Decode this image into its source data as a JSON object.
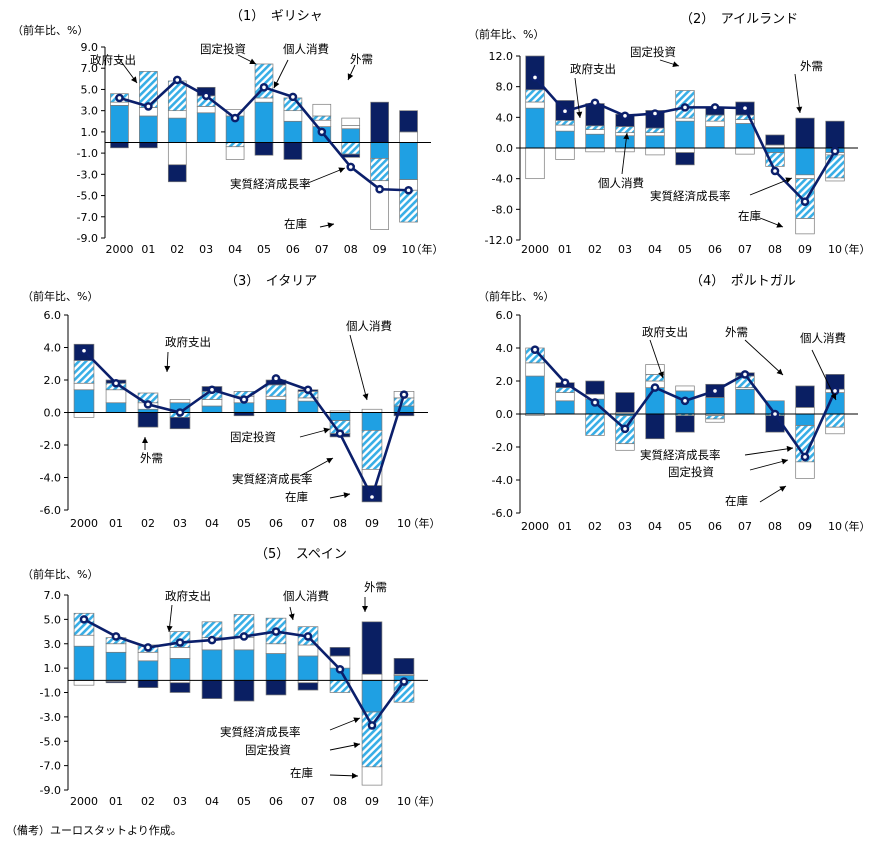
{
  "note": "（備考）ユーロスタットより作成。",
  "colors": {
    "consumption": "#1fa0e3",
    "government": "#ffffff",
    "investment": "#37aee6",
    "inventory": "#ffffff",
    "external": "#0a1f63",
    "growth_line": "#0b1f6b",
    "outline": "#7a7a7a"
  },
  "chart_data": [
    {
      "type": "bar",
      "title": "（1）　ギリシャ",
      "ylabel": "（前年比、%）",
      "year_unit": "（年）",
      "categories": [
        "2000",
        "01",
        "02",
        "03",
        "04",
        "05",
        "06",
        "07",
        "08",
        "09",
        "10"
      ],
      "ylim": [
        -9,
        9
      ],
      "yticks": [
        "9.0",
        "7.0",
        "5.0",
        "3.0",
        "1.0",
        "-1.0",
        "-3.0",
        "-5.0",
        "-7.0",
        "-9.0"
      ],
      "series": [
        {
          "name": "個人消費",
          "values": [
            3.5,
            2.5,
            2.3,
            2.8,
            2.5,
            3.8,
            2.0,
            1.5,
            1.3,
            -1.5,
            -3.5
          ]
        },
        {
          "name": "政府支出",
          "values": [
            0.3,
            0.8,
            0.7,
            0.6,
            0.6,
            0.4,
            1.0,
            0.6,
            0.3,
            0.0,
            -1.0
          ]
        },
        {
          "name": "固定投資",
          "values": [
            0.8,
            3.4,
            2.8,
            1.0,
            -0.4,
            3.2,
            1.2,
            0.4,
            -1.1,
            -2.1,
            -3.0
          ]
        },
        {
          "name": "在庫",
          "values": [
            0.0,
            0.0,
            -2.1,
            0.0,
            -1.2,
            0.0,
            0.0,
            1.1,
            0.7,
            -4.6,
            1.0
          ]
        },
        {
          "name": "外需",
          "values": [
            -0.5,
            -0.5,
            -1.6,
            0.8,
            0.0,
            -1.2,
            -1.6,
            0.0,
            -0.3,
            3.8,
            2.0
          ]
        }
      ],
      "growth": {
        "name": "実質経済成長率",
        "values": [
          4.2,
          3.4,
          5.9,
          4.4,
          2.3,
          5.2,
          4.3,
          1.0,
          -2.3,
          -4.4,
          -4.5
        ]
      },
      "annotations": [
        "政府支出",
        "固定投資",
        "個人消費",
        "外需",
        "実質経済成長率",
        "在庫"
      ]
    },
    {
      "type": "bar",
      "title": "（2）　アイルランド",
      "ylabel": "（前年比、%）",
      "year_unit": "（年）",
      "categories": [
        "2000",
        "01",
        "02",
        "03",
        "04",
        "05",
        "06",
        "07",
        "08",
        "09",
        "10"
      ],
      "ylim": [
        -12,
        12
      ],
      "yticks": [
        "12.0",
        "8.0",
        "4.0",
        "0.0",
        "-4.0",
        "-8.0",
        "-12.0"
      ],
      "series": [
        {
          "name": "個人消費",
          "values": [
            5.2,
            2.2,
            1.8,
            1.6,
            1.6,
            3.5,
            2.8,
            3.2,
            -0.6,
            -3.5,
            -0.6
          ]
        },
        {
          "name": "政府支出",
          "values": [
            0.8,
            0.8,
            0.6,
            0.4,
            0.4,
            0.4,
            0.7,
            0.5,
            0.4,
            -0.5,
            -0.3
          ]
        },
        {
          "name": "固定投資",
          "values": [
            1.6,
            0.6,
            0.5,
            0.8,
            0.6,
            3.6,
            0.8,
            0.6,
            -1.8,
            -5.2,
            -3.0
          ]
        },
        {
          "name": "在庫",
          "values": [
            -4.0,
            -1.5,
            -0.5,
            -0.5,
            -0.9,
            -0.6,
            0.0,
            -0.8,
            0.0,
            -2.0,
            -0.4
          ]
        },
        {
          "name": "外需",
          "values": [
            4.4,
            2.6,
            2.9,
            1.6,
            2.3,
            -1.6,
            1.0,
            1.7,
            1.3,
            3.9,
            3.5
          ]
        }
      ],
      "growth": {
        "name": "実質経済成長率",
        "values": [
          9.2,
          4.8,
          5.9,
          4.2,
          4.5,
          5.3,
          5.3,
          5.2,
          -3.0,
          -7.0,
          -0.4
        ]
      },
      "annotations": [
        "政府支出",
        "固定投資",
        "外需",
        "個人消費",
        "実質経済成長率",
        "在庫"
      ]
    },
    {
      "type": "bar",
      "title": "（3）　イタリア",
      "ylabel": "（前年比、%）",
      "year_unit": "（年）",
      "categories": [
        "2000",
        "01",
        "02",
        "03",
        "04",
        "05",
        "06",
        "07",
        "08",
        "09",
        "10"
      ],
      "ylim": [
        -6,
        6
      ],
      "yticks": [
        "6.0",
        "4.0",
        "2.0",
        "0.0",
        "-2.0",
        "-4.0",
        "-6.0"
      ],
      "series": [
        {
          "name": "個人消費",
          "values": [
            1.4,
            0.6,
            0.2,
            0.6,
            0.4,
            0.6,
            0.8,
            0.7,
            -0.5,
            -1.1,
            0.4
          ]
        },
        {
          "name": "政府支出",
          "values": [
            0.4,
            0.8,
            0.4,
            0.2,
            0.4,
            0.4,
            0.2,
            0.2,
            0.1,
            0.2,
            0.0
          ]
        },
        {
          "name": "固定投資",
          "values": [
            1.4,
            0.4,
            0.6,
            -0.3,
            0.5,
            0.3,
            0.7,
            0.4,
            -0.8,
            -2.4,
            0.5
          ]
        },
        {
          "name": "在庫",
          "values": [
            -0.3,
            0.0,
            0.0,
            0.0,
            0.0,
            0.0,
            0.0,
            0.0,
            0.0,
            -1.0,
            0.4
          ]
        },
        {
          "name": "外需",
          "values": [
            1.0,
            0.2,
            -0.9,
            -0.7,
            0.3,
            -0.2,
            0.3,
            0.1,
            -0.2,
            -1.0,
            -0.2
          ]
        }
      ],
      "growth": {
        "name": "実質経済成長率",
        "values": [
          3.8,
          1.8,
          0.5,
          0.0,
          1.4,
          0.8,
          2.1,
          1.4,
          -1.3,
          -5.2,
          1.1
        ]
      },
      "annotations": [
        "政府支出",
        "外需",
        "固定投資",
        "実質経済成長率",
        "在庫",
        "個人消費"
      ]
    },
    {
      "type": "bar",
      "title": "（4）　ポルトガル",
      "ylabel": "（前年比、%）",
      "year_unit": "（年）",
      "categories": [
        "2000",
        "01",
        "02",
        "03",
        "04",
        "05",
        "06",
        "07",
        "08",
        "09",
        "10"
      ],
      "ylim": [
        -6,
        6
      ],
      "yticks": [
        "6.0",
        "4.0",
        "2.0",
        "0.0",
        "-2.0",
        "-4.0",
        "-6.0"
      ],
      "series": [
        {
          "name": "個人消費",
          "values": [
            2.3,
            0.8,
            0.9,
            -0.1,
            1.6,
            1.4,
            1.0,
            1.5,
            0.8,
            -0.7,
            1.3
          ]
        },
        {
          "name": "政府支出",
          "values": [
            0.8,
            0.5,
            0.3,
            0.1,
            0.4,
            0.3,
            -0.1,
            0.1,
            0.0,
            0.4,
            0.2
          ]
        },
        {
          "name": "固定投資",
          "values": [
            0.9,
            0.3,
            -1.3,
            -1.7,
            0.4,
            -0.1,
            -0.2,
            0.7,
            -0.1,
            -2.2,
            -0.8
          ]
        },
        {
          "name": "在庫",
          "values": [
            -0.1,
            0.0,
            0.0,
            -0.4,
            0.6,
            0.0,
            -0.2,
            0.0,
            0.0,
            -1.0,
            -0.4
          ]
        },
        {
          "name": "外需",
          "values": [
            0.0,
            0.3,
            0.8,
            1.2,
            -1.5,
            -1.0,
            0.8,
            0.2,
            -1.0,
            1.3,
            0.9
          ]
        }
      ],
      "growth": {
        "name": "実質経済成長率",
        "values": [
          3.9,
          1.9,
          0.7,
          -0.9,
          1.6,
          0.8,
          1.4,
          2.4,
          0.0,
          -2.6,
          1.4
        ]
      },
      "annotations": [
        "政府支出",
        "外需",
        "個人消費",
        "実質経済成長率",
        "固定投資",
        "在庫"
      ]
    },
    {
      "type": "bar",
      "title": "（5）　スペイン",
      "ylabel": "（前年比、%）",
      "year_unit": "（年）",
      "categories": [
        "2000",
        "01",
        "02",
        "03",
        "04",
        "05",
        "06",
        "07",
        "08",
        "09",
        "10"
      ],
      "ylim": [
        -9,
        7
      ],
      "yticks": [
        "7.0",
        "5.0",
        "3.0",
        "1.0",
        "-1.0",
        "-3.0",
        "-5.0",
        "-7.0",
        "-9.0"
      ],
      "series": [
        {
          "name": "個人消費",
          "values": [
            2.8,
            2.3,
            1.6,
            1.8,
            2.5,
            2.5,
            2.2,
            2.0,
            1.0,
            -2.6,
            0.4
          ]
        },
        {
          "name": "政府支出",
          "values": [
            0.9,
            0.7,
            0.7,
            0.9,
            1.0,
            1.0,
            0.8,
            0.9,
            1.0,
            0.5,
            0.1
          ]
        },
        {
          "name": "固定投資",
          "values": [
            1.8,
            0.5,
            0.6,
            1.3,
            1.3,
            1.9,
            2.1,
            1.5,
            -1.0,
            -4.5,
            -1.8
          ]
        },
        {
          "name": "在庫",
          "values": [
            -0.4,
            -0.1,
            0.0,
            -0.2,
            0.0,
            0.0,
            0.0,
            -0.2,
            0.0,
            -1.5,
            0.0
          ]
        },
        {
          "name": "外需",
          "values": [
            0.0,
            -0.1,
            -0.6,
            -0.8,
            -1.5,
            -1.7,
            -1.2,
            -0.6,
            0.7,
            4.3,
            1.3
          ]
        }
      ],
      "growth": {
        "name": "実質経済成長率",
        "values": [
          5.0,
          3.6,
          2.7,
          3.1,
          3.3,
          3.6,
          4.0,
          3.6,
          0.9,
          -3.7,
          -0.1
        ]
      },
      "annotations": [
        "政府支出",
        "個人消費",
        "外需",
        "実質経済成長率",
        "固定投資",
        "在庫"
      ]
    }
  ]
}
